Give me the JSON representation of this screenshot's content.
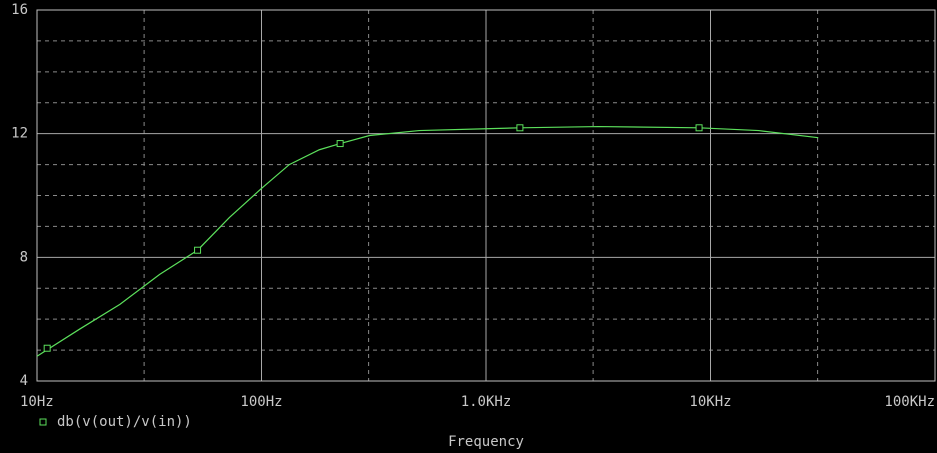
{
  "chart_data": {
    "type": "line",
    "x_label": "Frequency",
    "log_x": true,
    "grid": true,
    "xlim": [
      10,
      100000
    ],
    "xticks": [
      {
        "value": 10,
        "label": "10Hz"
      },
      {
        "value": 100,
        "label": "100Hz"
      },
      {
        "value": 1000,
        "label": "1.0KHz"
      },
      {
        "value": 10000,
        "label": "10KHz"
      },
      {
        "value": 100000,
        "label": "100KHz"
      }
    ],
    "minor_xticks": [
      30,
      300,
      3000,
      30000
    ],
    "ylim": [
      4,
      16
    ],
    "yticks": [
      4,
      8,
      12,
      16
    ],
    "minor_yticks": [
      5,
      6,
      7,
      9,
      10,
      11,
      13,
      14,
      15
    ],
    "series": [
      {
        "name": "db(v(out)/v(in))",
        "color": "#5ce05c",
        "x": [
          10,
          15.5,
          23.4,
          35.2,
          51.9,
          72,
          100,
          133,
          181,
          224,
          303,
          504,
          1000,
          1416,
          3170,
          8893,
          16400,
          30200
        ],
        "values": [
          4.8,
          5.68,
          6.48,
          7.45,
          8.23,
          9.29,
          10.23,
          11.0,
          11.48,
          11.68,
          11.94,
          12.1,
          12.16,
          12.19,
          12.23,
          12.19,
          12.1,
          11.87
        ],
        "markers": {
          "x": [
            11.1,
            51.9,
            224,
            1416,
            8893
          ],
          "values": [
            5.06,
            8.23,
            11.68,
            12.19,
            12.19
          ]
        }
      }
    ]
  }
}
